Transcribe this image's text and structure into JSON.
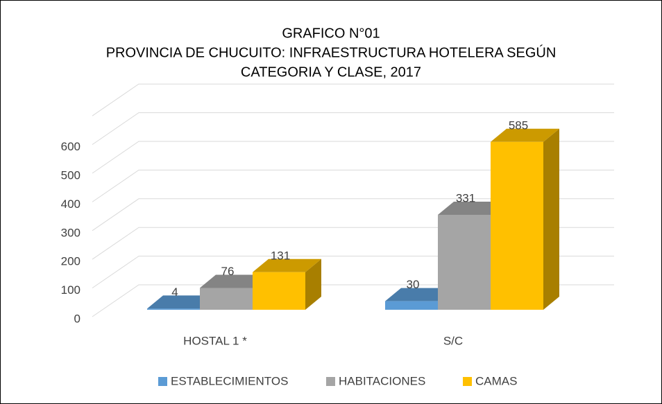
{
  "chart_data": {
    "type": "bar3d",
    "title": [
      "GRAFICO N°01",
      "PROVINCIA DE CHUCUITO: INFRAESTRUCTURA HOTELERA SEGÚN",
      "CATEGORIA Y CLASE, 2017"
    ],
    "categories": [
      "HOSTAL 1 *",
      "S/C"
    ],
    "series": [
      {
        "name": "ESTABLECIMIENTOS",
        "color": "#5b9bd5",
        "values": [
          4,
          30
        ]
      },
      {
        "name": "HABITACIONES",
        "color": "#a5a5a5",
        "values": [
          76,
          331
        ]
      },
      {
        "name": "CAMAS",
        "color": "#ffc000",
        "values": [
          131,
          585
        ]
      }
    ],
    "ylim": [
      0,
      700
    ],
    "yticks": [
      0,
      100,
      200,
      300,
      400,
      500,
      600
    ],
    "grid": true,
    "legend": "bottom"
  }
}
